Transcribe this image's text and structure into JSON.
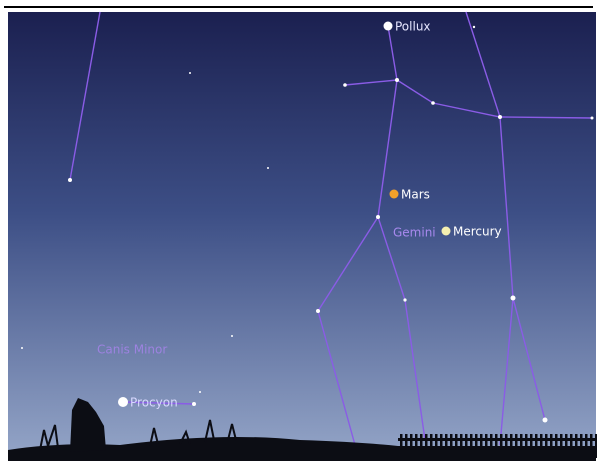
{
  "labels": {
    "pollux": "Pollux",
    "mars": "Mars",
    "gemini": "Gemini",
    "mercury": "Mercury",
    "canis_minor": "Canis Minor",
    "procyon": "Procyon"
  }
}
